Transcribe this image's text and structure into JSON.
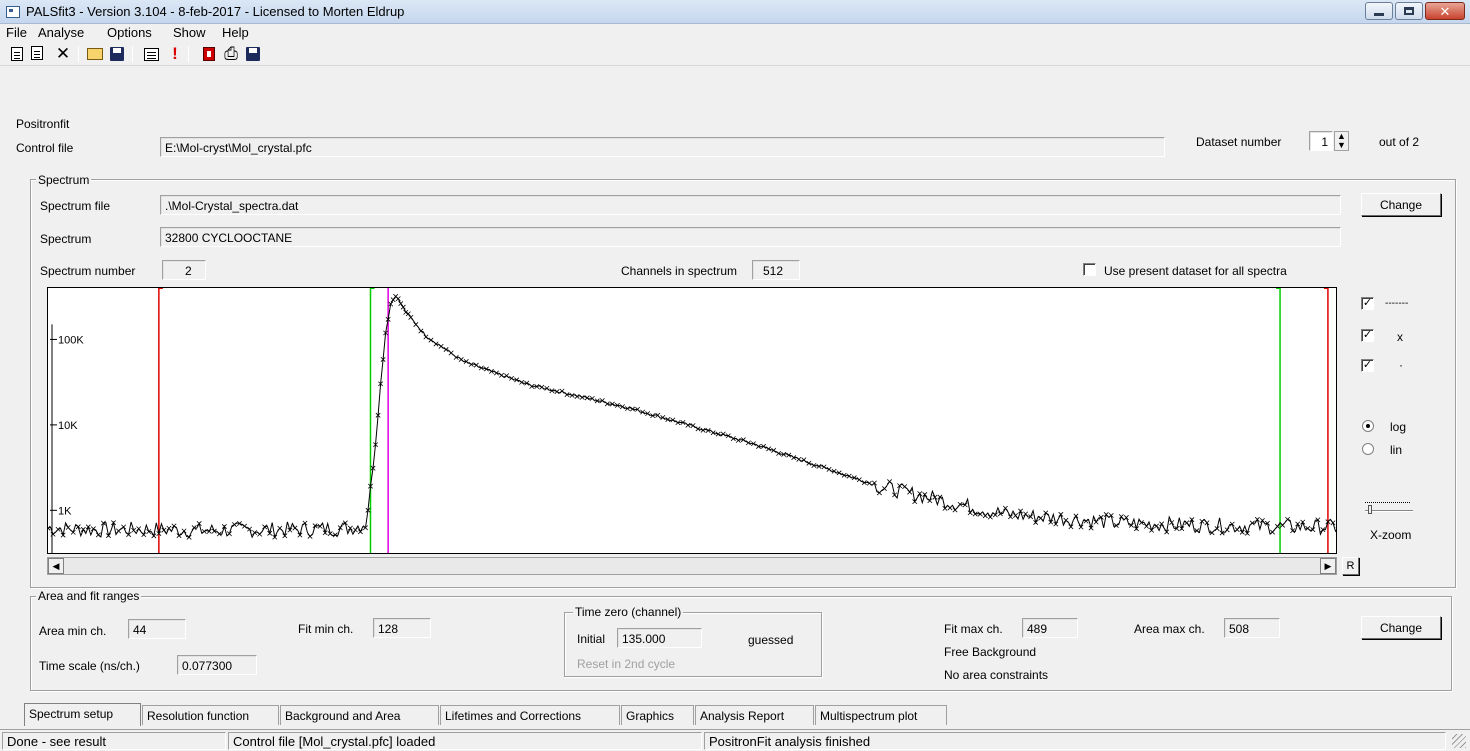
{
  "window": {
    "title": "PALSfit3 - Version 3.104 - 8-feb-2017 - Licensed to Morten Eldrup"
  },
  "menu": [
    "File",
    "Analyse",
    "Options",
    "Show",
    "Help"
  ],
  "toolbar": {
    "icons": [
      "new-file-icon",
      "copy-icon",
      "delete-icon",
      "open-folder-icon",
      "save-icon",
      "calculator-icon",
      "exclamation-icon",
      "report-icon",
      "print-icon",
      "save-icon"
    ],
    "delete_glyph": "✕",
    "alert_glyph": "!",
    "print_glyph": "⎙"
  },
  "header": {
    "program_label": "Positronfit",
    "control_file_label": "Control file",
    "control_file_value": "E:\\Mol-cryst\\Mol_crystal.pfc",
    "dataset_label": "Dataset number",
    "dataset_value": "1",
    "out_of": "out of  2"
  },
  "spectrum": {
    "group_title": "Spectrum",
    "file_label": "Spectrum file",
    "file_value": ".\\Mol-Crystal_spectra.dat",
    "name_label": "Spectrum",
    "name_value": "32800 CYCLOOCTANE",
    "change_label": "Change",
    "number_label": "Spectrum number",
    "number_value": "2",
    "channels_label": "Channels in spectrum",
    "channels_value": "512",
    "use_all_label": "Use present dataset for all spectra",
    "use_all_checked": false
  },
  "plot_options": {
    "line_label": "-------",
    "x_label": "x",
    "dot_label": "·",
    "line_checked": true,
    "x_checked": true,
    "dot_checked": true,
    "log_label": "log",
    "lin_label": "lin",
    "scale": "log",
    "xzoom_label": "X-zoom",
    "reset_label": "R"
  },
  "chart_data": {
    "type": "line",
    "yscale": "log",
    "ytick_labels": [
      "100K",
      "10K",
      "1K"
    ],
    "xlim": [
      0,
      512
    ],
    "markers": [
      {
        "name": "area_min",
        "channel": 44,
        "color": "#e00000"
      },
      {
        "name": "fit_min",
        "channel": 128,
        "color": "#00cc00"
      },
      {
        "name": "time_zero",
        "channel": 135,
        "color": "#e000e0"
      },
      {
        "name": "fit_max",
        "channel": 489,
        "color": "#00cc00"
      },
      {
        "name": "area_max",
        "channel": 508,
        "color": "#e00000"
      }
    ],
    "series": [
      {
        "points": [
          [
            0,
            620
          ],
          [
            20,
            590
          ],
          [
            40,
            600
          ],
          [
            60,
            580
          ],
          [
            80,
            590
          ],
          [
            100,
            600
          ],
          [
            120,
            620
          ],
          [
            126,
            700
          ],
          [
            128,
            1700
          ],
          [
            130,
            6000
          ],
          [
            132,
            30000
          ],
          [
            134,
            120000
          ],
          [
            136,
            260000
          ],
          [
            138,
            330000
          ],
          [
            142,
            210000
          ],
          [
            150,
            110000
          ],
          [
            165,
            55000
          ],
          [
            190,
            30000
          ],
          [
            230,
            16000
          ],
          [
            280,
            6000
          ],
          [
            330,
            1900
          ],
          [
            380,
            900
          ],
          [
            430,
            700
          ],
          [
            480,
            650
          ],
          [
            512,
            640
          ]
        ]
      }
    ]
  },
  "ranges": {
    "group_title": "Area and fit ranges",
    "area_min_label": "Area min ch.",
    "area_min_value": "44",
    "fit_min_label": "Fit min ch.",
    "fit_min_value": "128",
    "timezero_title": "Time zero (channel)",
    "initial_label": "Initial",
    "initial_value": "135.000",
    "guessed_label": "guessed",
    "reset_label": "Reset in 2nd cycle",
    "fit_max_label": "Fit max ch.",
    "fit_max_value": "489",
    "area_max_label": "Area max ch.",
    "area_max_value": "508",
    "change_label": "Change",
    "free_bg_label": "Free Background",
    "no_area_label": "No area constraints",
    "timescale_label": "Time scale (ns/ch.)",
    "timescale_value": "0.077300"
  },
  "tabs": [
    "Spectrum setup",
    "Resolution function",
    "Background and Area",
    "Lifetimes and Corrections",
    "Graphics",
    "Analysis Report",
    "Multispectrum plot"
  ],
  "status": {
    "left": "Done - see result",
    "middle": "Control file [Mol_crystal.pfc] loaded",
    "right": "PositronFit analysis finished"
  },
  "colors": {
    "red_marker": "#e00000",
    "green_marker": "#00cc00",
    "magenta_marker": "#e000e0"
  }
}
